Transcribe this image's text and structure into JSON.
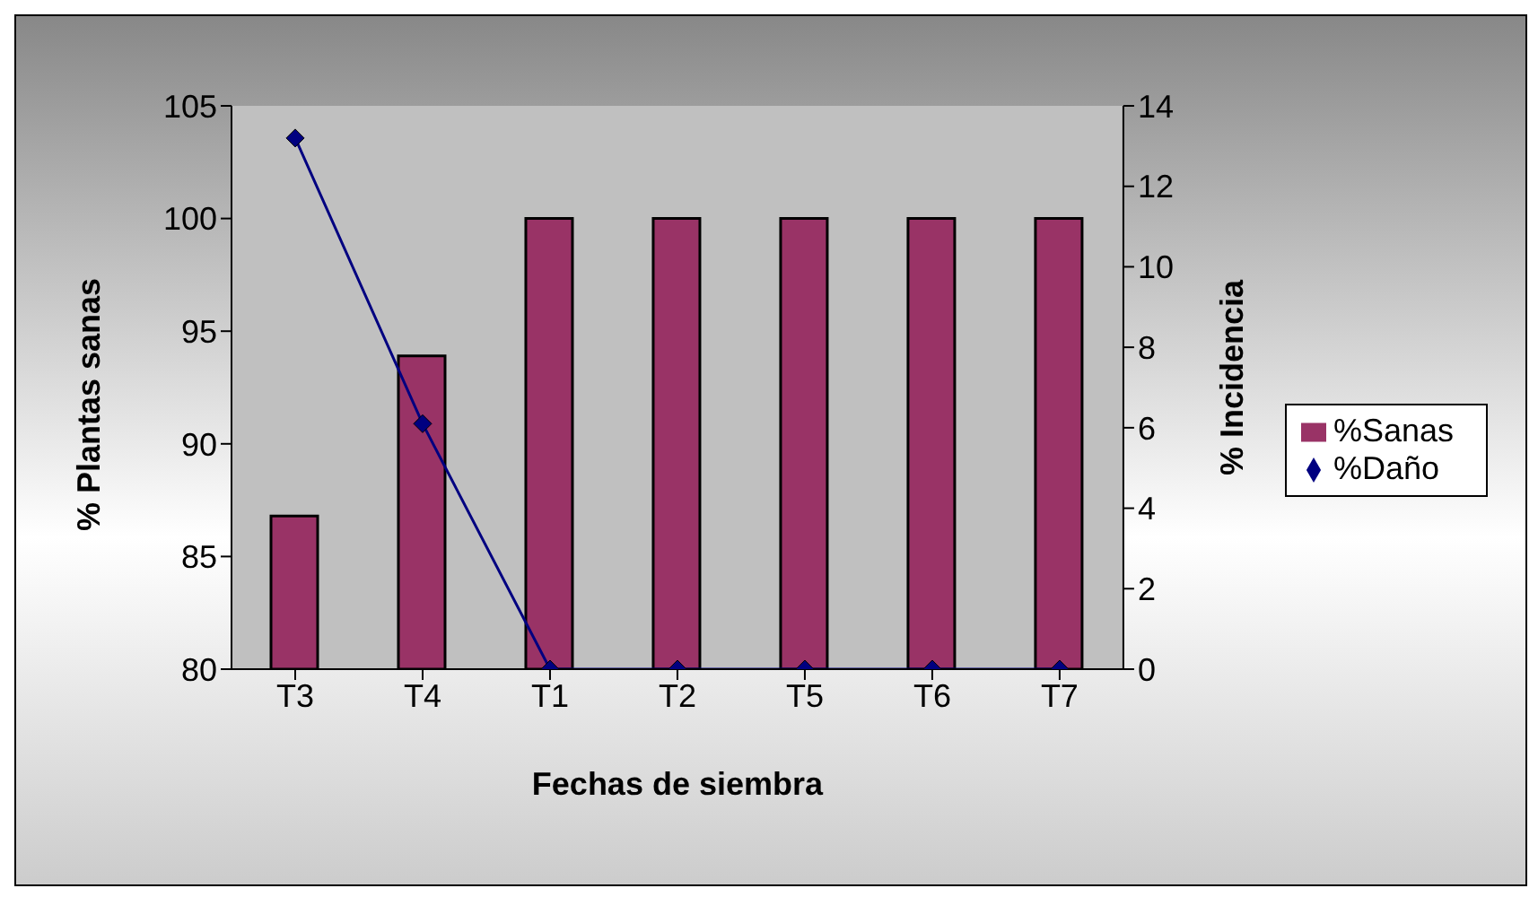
{
  "chart_data": {
    "type": "bar",
    "xlabel": "Fechas de siembra",
    "ylabel": "% Plantas sanas",
    "y2label": "% Incidencia",
    "categories": [
      "T3",
      "T4",
      "T1",
      "T2",
      "T5",
      "T6",
      "T7"
    ],
    "series": [
      {
        "name": "%Sanas",
        "color": "#993366",
        "values": [
          86.8,
          93.9,
          100,
          100,
          100,
          100,
          100
        ]
      },
      {
        "name": "%Daño",
        "type": "line",
        "axis": "y2",
        "color": "#000080",
        "marker": "diamond",
        "values": [
          13.2,
          6.1,
          0,
          0,
          0,
          0,
          0
        ]
      }
    ],
    "ylim": [
      80,
      105
    ],
    "yticks": [
      80,
      85,
      90,
      95,
      100,
      105
    ],
    "y2lim": [
      0,
      14
    ],
    "y2ticks": [
      0,
      2,
      4,
      6,
      8,
      10,
      12,
      14
    ],
    "legend": "right",
    "grid": false
  }
}
